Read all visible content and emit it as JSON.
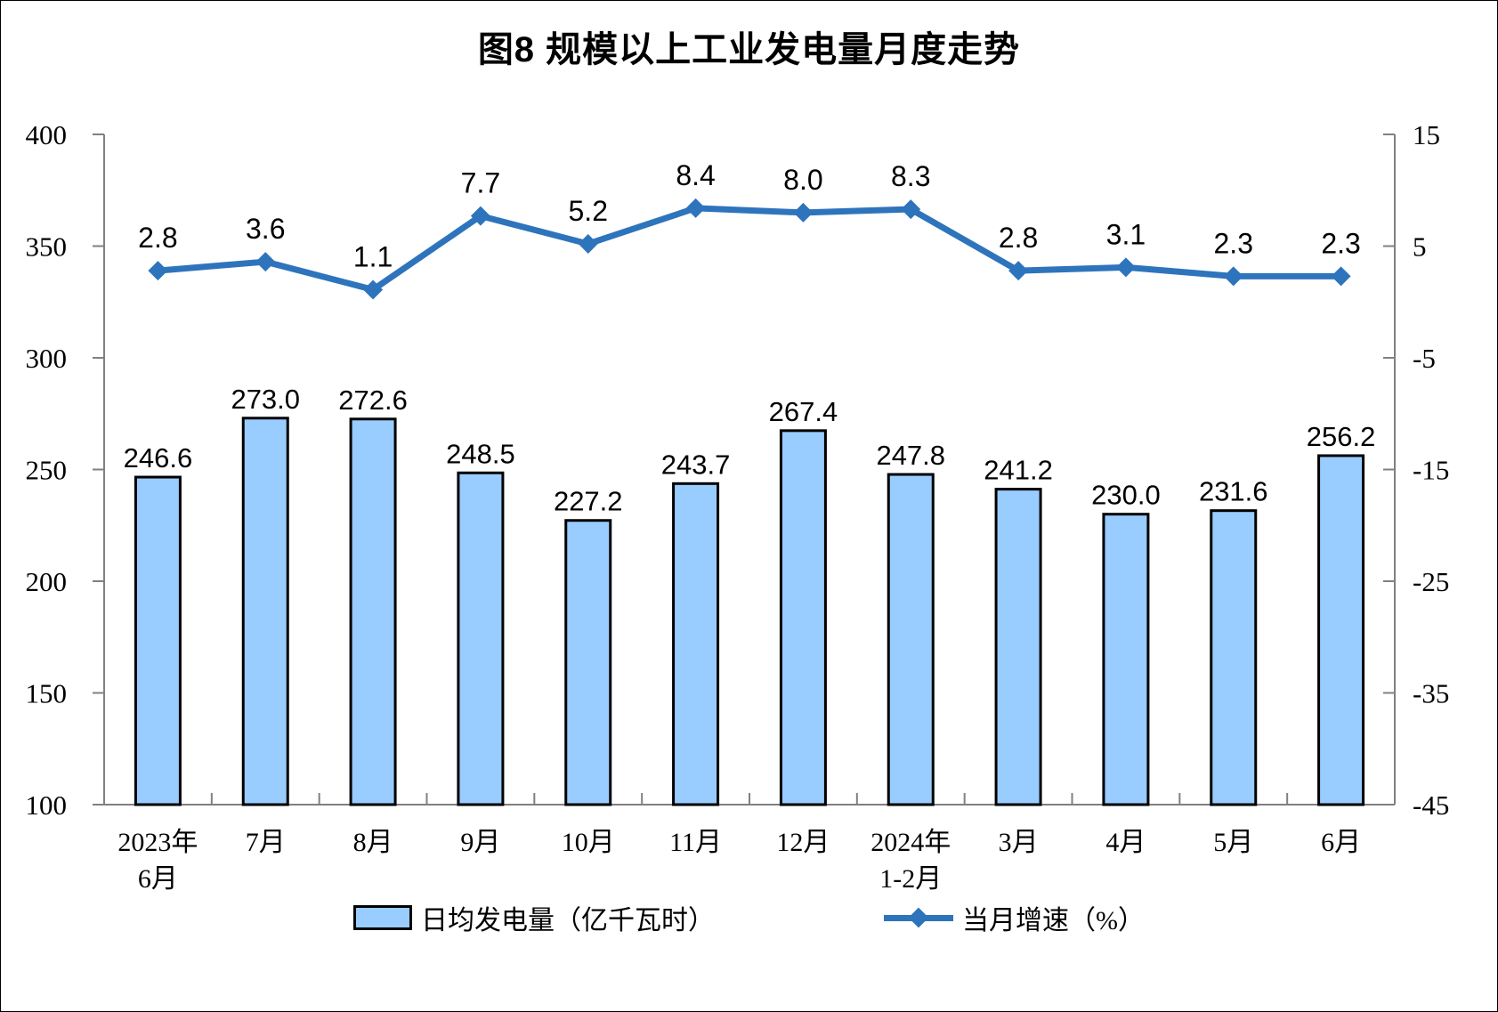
{
  "chart_data": {
    "type": "bar",
    "title": "图8  规模以上工业发电量月度走势",
    "categories": [
      [
        "2023年",
        "6月"
      ],
      [
        "7月"
      ],
      [
        "8月"
      ],
      [
        "9月"
      ],
      [
        "10月"
      ],
      [
        "11月"
      ],
      [
        "12月"
      ],
      [
        "2024年",
        "1-2月"
      ],
      [
        "3月"
      ],
      [
        "4月"
      ],
      [
        "5月"
      ],
      [
        "6月"
      ]
    ],
    "series": [
      {
        "name": "日均发电量（亿千瓦时）",
        "type": "bar",
        "axis": "left",
        "color": "#99CCFF",
        "border_color": "#000000",
        "values": [
          246.6,
          273.0,
          272.6,
          248.5,
          227.2,
          243.7,
          267.4,
          247.8,
          241.2,
          230.0,
          231.6,
          256.2
        ]
      },
      {
        "name": "当月增速（%）",
        "type": "line",
        "axis": "right",
        "color": "#2E74BC",
        "marker": "diamond",
        "values": [
          2.8,
          3.6,
          1.1,
          7.7,
          5.2,
          8.4,
          8.0,
          8.3,
          2.8,
          3.1,
          2.3,
          2.3
        ]
      }
    ],
    "left_axis": {
      "min": 100,
      "max": 400,
      "tick_step": 50,
      "ticks": [
        400,
        350,
        300,
        250,
        200,
        150,
        100
      ]
    },
    "right_axis": {
      "min": -45,
      "max": 15,
      "tick_step": 10,
      "ticks": [
        15,
        5,
        -5,
        -15,
        -25,
        -35,
        -45
      ]
    },
    "grid": false,
    "legend_position": "bottom",
    "axis_color": "#808080",
    "label_color": "#000000"
  }
}
